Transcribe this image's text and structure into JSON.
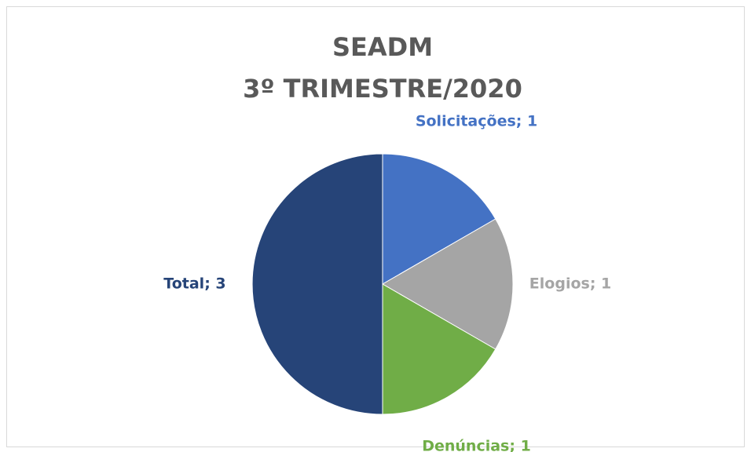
{
  "chart_data": {
    "type": "pie",
    "title": "SEADM",
    "subtitle": "3º TRIMESTRE/2020",
    "categories": [
      "Solicitações",
      "Elogios",
      "Denúncias",
      "Total"
    ],
    "values": [
      1,
      1,
      1,
      3
    ],
    "value_labels": [
      "Solicitações; 1",
      "Elogios; 1",
      "Denúncias; 1",
      "Total; 3"
    ],
    "colors": [
      "#4472c4",
      "#a5a5a5",
      "#70ad47",
      "#264478"
    ]
  }
}
